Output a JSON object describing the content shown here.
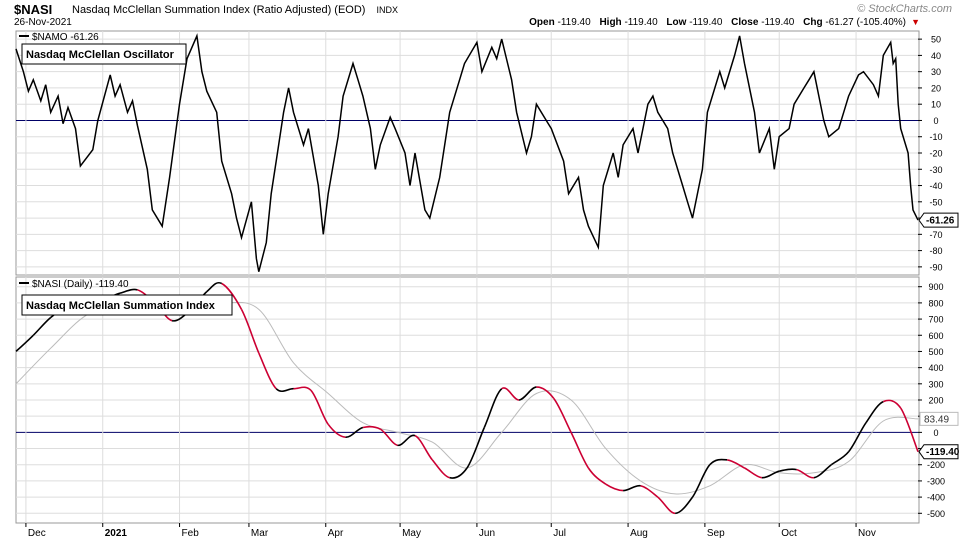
{
  "header": {
    "symbol": "$NASI",
    "description": "Nasdaq McClellan Summation Index (Ratio Adjusted) (EOD)",
    "exchange": "INDX",
    "date": "26-Nov-2021",
    "brand": "© StockCharts.com",
    "ohlc": {
      "open_label": "Open",
      "open": "-119.40",
      "high_label": "High",
      "high": "-119.40",
      "low_label": "Low",
      "low": "-119.40",
      "close_label": "Close",
      "close": "-119.40",
      "chg_label": "Chg",
      "chg": "-61.27 (-105.40%)"
    }
  },
  "top_panel": {
    "legend": "$NAMO -61.26",
    "title_box": "Nasdaq McClellan Oscillator",
    "last_value_label": "-61.26"
  },
  "bottom_panel": {
    "legend": "$NASI (Daily) -119.40",
    "title_box": "Nasdaq McClellan Summation Index",
    "ma_value_label": "83.49",
    "last_value_label": "-119.40"
  },
  "x_axis": {
    "labels": [
      "Dec",
      "2021",
      "Feb",
      "Mar",
      "Apr",
      "May",
      "Jun",
      "Jul",
      "Aug",
      "Sep",
      "Oct",
      "Nov"
    ]
  },
  "colors": {
    "line": "#000000",
    "falling": "#cc0033",
    "moving_average": "#bbbbbb",
    "zero_line": "#000066",
    "grid": "#dddddd"
  },
  "chart_data": [
    {
      "type": "line",
      "title": "Nasdaq McClellan Oscillator",
      "series_label": "$NAMO",
      "ylim": [
        -95,
        55
      ],
      "yticks": [
        50,
        40,
        30,
        20,
        10,
        0,
        -10,
        -20,
        -30,
        -40,
        -50,
        -60,
        -70,
        -80,
        -90
      ],
      "ytick_labels": [
        "50",
        "40",
        "30",
        "20",
        "10",
        "0",
        "-10",
        "-20",
        "-30",
        "-40",
        "-50",
        "-60",
        "-70",
        "-80",
        "-90"
      ],
      "zero_line": 0,
      "x_range": [
        "2020-11-27",
        "2021-11-26"
      ],
      "points": [
        [
          "2020-11-27",
          44
        ],
        [
          "2020-11-30",
          30
        ],
        [
          "2020-12-02",
          18
        ],
        [
          "2020-12-04",
          25
        ],
        [
          "2020-12-07",
          12
        ],
        [
          "2020-12-09",
          22
        ],
        [
          "2020-12-11",
          5
        ],
        [
          "2020-12-14",
          15
        ],
        [
          "2020-12-16",
          -2
        ],
        [
          "2020-12-18",
          8
        ],
        [
          "2020-12-21",
          -5
        ],
        [
          "2020-12-23",
          -28
        ],
        [
          "2020-12-28",
          -18
        ],
        [
          "2020-12-30",
          0
        ],
        [
          "2021-01-04",
          28
        ],
        [
          "2021-01-06",
          15
        ],
        [
          "2021-01-08",
          22
        ],
        [
          "2021-01-11",
          5
        ],
        [
          "2021-01-13",
          12
        ],
        [
          "2021-01-15",
          -3
        ],
        [
          "2021-01-19",
          -30
        ],
        [
          "2021-01-21",
          -55
        ],
        [
          "2021-01-25",
          -65
        ],
        [
          "2021-01-28",
          -35
        ],
        [
          "2021-02-01",
          10
        ],
        [
          "2021-02-04",
          38
        ],
        [
          "2021-02-08",
          52
        ],
        [
          "2021-02-10",
          30
        ],
        [
          "2021-02-12",
          18
        ],
        [
          "2021-02-16",
          5
        ],
        [
          "2021-02-18",
          -25
        ],
        [
          "2021-02-22",
          -45
        ],
        [
          "2021-02-24",
          -60
        ],
        [
          "2021-02-26",
          -72
        ],
        [
          "2021-03-02",
          -50
        ],
        [
          "2021-03-04",
          -85
        ],
        [
          "2021-03-05",
          -93
        ],
        [
          "2021-03-08",
          -75
        ],
        [
          "2021-03-10",
          -45
        ],
        [
          "2021-03-12",
          -25
        ],
        [
          "2021-03-15",
          5
        ],
        [
          "2021-03-17",
          20
        ],
        [
          "2021-03-19",
          5
        ],
        [
          "2021-03-23",
          -15
        ],
        [
          "2021-03-25",
          -5
        ],
        [
          "2021-03-29",
          -40
        ],
        [
          "2021-03-31",
          -70
        ],
        [
          "2021-04-02",
          -45
        ],
        [
          "2021-04-06",
          -10
        ],
        [
          "2021-04-08",
          15
        ],
        [
          "2021-04-12",
          35
        ],
        [
          "2021-04-14",
          25
        ],
        [
          "2021-04-16",
          15
        ],
        [
          "2021-04-19",
          -5
        ],
        [
          "2021-04-21",
          -30
        ],
        [
          "2021-04-23",
          -15
        ],
        [
          "2021-04-27",
          2
        ],
        [
          "2021-04-29",
          -5
        ],
        [
          "2021-05-03",
          -20
        ],
        [
          "2021-05-05",
          -40
        ],
        [
          "2021-05-07",
          -20
        ],
        [
          "2021-05-11",
          -55
        ],
        [
          "2021-05-13",
          -60
        ],
        [
          "2021-05-17",
          -35
        ],
        [
          "2021-05-19",
          -15
        ],
        [
          "2021-05-21",
          5
        ],
        [
          "2021-05-25",
          25
        ],
        [
          "2021-05-27",
          35
        ],
        [
          "2021-06-01",
          48
        ],
        [
          "2021-06-03",
          30
        ],
        [
          "2021-06-07",
          45
        ],
        [
          "2021-06-09",
          38
        ],
        [
          "2021-06-11",
          50
        ],
        [
          "2021-06-15",
          25
        ],
        [
          "2021-06-17",
          5
        ],
        [
          "2021-06-21",
          -20
        ],
        [
          "2021-06-23",
          -10
        ],
        [
          "2021-06-25",
          10
        ],
        [
          "2021-06-29",
          0
        ],
        [
          "2021-07-01",
          -5
        ],
        [
          "2021-07-06",
          -25
        ],
        [
          "2021-07-08",
          -45
        ],
        [
          "2021-07-12",
          -35
        ],
        [
          "2021-07-14",
          -55
        ],
        [
          "2021-07-16",
          -65
        ],
        [
          "2021-07-20",
          -78
        ],
        [
          "2021-07-22",
          -40
        ],
        [
          "2021-07-26",
          -20
        ],
        [
          "2021-07-28",
          -35
        ],
        [
          "2021-07-30",
          -15
        ],
        [
          "2021-08-03",
          -5
        ],
        [
          "2021-08-05",
          -20
        ],
        [
          "2021-08-09",
          10
        ],
        [
          "2021-08-11",
          15
        ],
        [
          "2021-08-13",
          5
        ],
        [
          "2021-08-17",
          -5
        ],
        [
          "2021-08-19",
          -20
        ],
        [
          "2021-08-23",
          -40
        ],
        [
          "2021-08-25",
          -50
        ],
        [
          "2021-08-27",
          -60
        ],
        [
          "2021-08-31",
          -30
        ],
        [
          "2021-09-02",
          5
        ],
        [
          "2021-09-07",
          30
        ],
        [
          "2021-09-09",
          20
        ],
        [
          "2021-09-13",
          40
        ],
        [
          "2021-09-15",
          52
        ],
        [
          "2021-09-17",
          35
        ],
        [
          "2021-09-21",
          5
        ],
        [
          "2021-09-23",
          -20
        ],
        [
          "2021-09-27",
          -5
        ],
        [
          "2021-09-29",
          -30
        ],
        [
          "2021-10-01",
          -10
        ],
        [
          "2021-10-05",
          -5
        ],
        [
          "2021-10-07",
          10
        ],
        [
          "2021-10-11",
          20
        ],
        [
          "2021-10-13",
          25
        ],
        [
          "2021-10-15",
          30
        ],
        [
          "2021-10-19",
          0
        ],
        [
          "2021-10-21",
          -10
        ],
        [
          "2021-10-25",
          -5
        ],
        [
          "2021-10-27",
          5
        ],
        [
          "2021-10-29",
          15
        ],
        [
          "2021-11-02",
          28
        ],
        [
          "2021-11-04",
          30
        ],
        [
          "2021-11-08",
          22
        ],
        [
          "2021-11-10",
          15
        ],
        [
          "2021-11-12",
          40
        ],
        [
          "2021-11-15",
          48
        ],
        [
          "2021-11-16",
          35
        ],
        [
          "2021-11-17",
          38
        ],
        [
          "2021-11-18",
          10
        ],
        [
          "2021-11-19",
          -5
        ],
        [
          "2021-11-22",
          -20
        ],
        [
          "2021-11-23",
          -40
        ],
        [
          "2021-11-24",
          -55
        ],
        [
          "2021-11-26",
          -61.26
        ]
      ]
    },
    {
      "type": "line",
      "title": "Nasdaq McClellan Summation Index",
      "series_label": "$NASI (Daily)",
      "ylim": [
        -560,
        960
      ],
      "yticks": [
        900,
        800,
        700,
        600,
        500,
        400,
        300,
        200,
        100,
        0,
        -100,
        -200,
        -300,
        -400,
        -500
      ],
      "ytick_labels": [
        "900",
        "800",
        "700",
        "600",
        "500",
        "400",
        "300",
        "200",
        "100",
        "0",
        "-100",
        "-200",
        "-300",
        "-400",
        "-500"
      ],
      "zero_line": 0,
      "moving_average_last": 83.49,
      "x_range": [
        "2020-11-27",
        "2021-11-26"
      ],
      "points": [
        [
          "2020-11-27",
          500
        ],
        [
          "2020-12-04",
          600
        ],
        [
          "2020-12-11",
          710
        ],
        [
          "2020-12-18",
          780
        ],
        [
          "2020-12-25",
          800
        ],
        [
          "2021-01-01",
          820
        ],
        [
          "2021-01-08",
          860
        ],
        [
          "2021-01-15",
          880
        ],
        [
          "2021-01-22",
          800
        ],
        [
          "2021-01-29",
          690
        ],
        [
          "2021-02-05",
          750
        ],
        [
          "2021-02-12",
          870
        ],
        [
          "2021-02-18",
          920
        ],
        [
          "2021-02-26",
          760
        ],
        [
          "2021-03-05",
          490
        ],
        [
          "2021-03-12",
          270
        ],
        [
          "2021-03-19",
          270
        ],
        [
          "2021-03-26",
          260
        ],
        [
          "2021-04-02",
          50
        ],
        [
          "2021-04-09",
          -30
        ],
        [
          "2021-04-16",
          30
        ],
        [
          "2021-04-23",
          20
        ],
        [
          "2021-04-30",
          -80
        ],
        [
          "2021-05-07",
          -20
        ],
        [
          "2021-05-14",
          -170
        ],
        [
          "2021-05-21",
          -280
        ],
        [
          "2021-05-28",
          -220
        ],
        [
          "2021-06-04",
          30
        ],
        [
          "2021-06-11",
          270
        ],
        [
          "2021-06-18",
          200
        ],
        [
          "2021-06-25",
          280
        ],
        [
          "2021-07-02",
          210
        ],
        [
          "2021-07-09",
          0
        ],
        [
          "2021-07-16",
          -220
        ],
        [
          "2021-07-23",
          -320
        ],
        [
          "2021-07-30",
          -360
        ],
        [
          "2021-08-06",
          -330
        ],
        [
          "2021-08-13",
          -400
        ],
        [
          "2021-08-20",
          -500
        ],
        [
          "2021-08-27",
          -400
        ],
        [
          "2021-09-03",
          -200
        ],
        [
          "2021-09-10",
          -170
        ],
        [
          "2021-09-17",
          -220
        ],
        [
          "2021-09-24",
          -280
        ],
        [
          "2021-10-01",
          -240
        ],
        [
          "2021-10-08",
          -230
        ],
        [
          "2021-10-15",
          -280
        ],
        [
          "2021-10-22",
          -200
        ],
        [
          "2021-10-29",
          -120
        ],
        [
          "2021-11-05",
          60
        ],
        [
          "2021-11-12",
          190
        ],
        [
          "2021-11-19",
          150
        ],
        [
          "2021-11-26",
          -119.4
        ]
      ],
      "ma_points": [
        [
          "2020-11-27",
          300
        ],
        [
          "2020-12-11",
          520
        ],
        [
          "2020-12-25",
          720
        ],
        [
          "2021-01-08",
          800
        ],
        [
          "2021-01-22",
          820
        ],
        [
          "2021-02-05",
          760
        ],
        [
          "2021-02-19",
          800
        ],
        [
          "2021-03-05",
          760
        ],
        [
          "2021-03-19",
          430
        ],
        [
          "2021-04-02",
          240
        ],
        [
          "2021-04-16",
          60
        ],
        [
          "2021-04-30",
          0
        ],
        [
          "2021-05-14",
          -60
        ],
        [
          "2021-05-28",
          -220
        ],
        [
          "2021-06-11",
          0
        ],
        [
          "2021-06-25",
          240
        ],
        [
          "2021-07-09",
          200
        ],
        [
          "2021-07-23",
          -100
        ],
        [
          "2021-08-06",
          -300
        ],
        [
          "2021-08-20",
          -380
        ],
        [
          "2021-09-03",
          -330
        ],
        [
          "2021-09-17",
          -200
        ],
        [
          "2021-10-01",
          -250
        ],
        [
          "2021-10-15",
          -250
        ],
        [
          "2021-10-29",
          -180
        ],
        [
          "2021-11-12",
          70
        ],
        [
          "2021-11-26",
          83.49
        ]
      ]
    }
  ]
}
